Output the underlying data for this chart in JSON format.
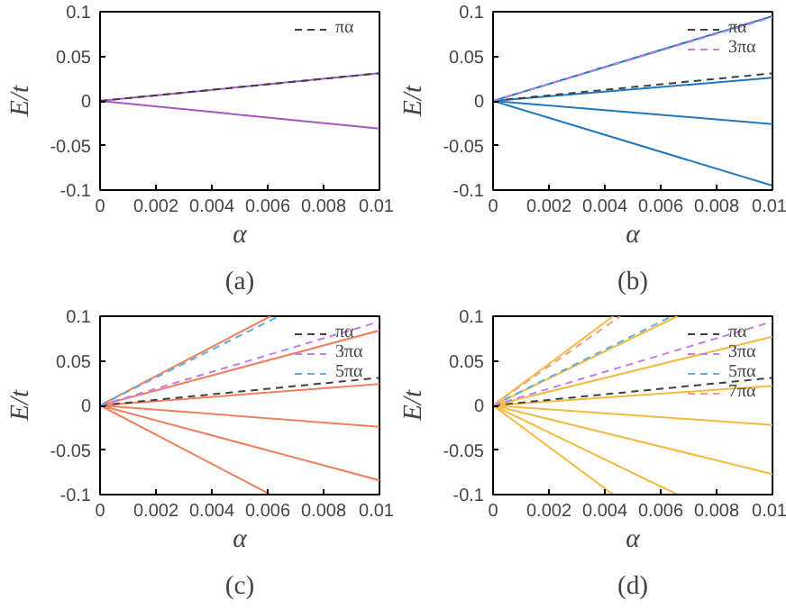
{
  "chart_data": [
    {
      "type": "line",
      "xlabel": "α",
      "ylabel": "E/t",
      "annotations": [
        "(a)"
      ],
      "xlim": [
        0,
        0.01
      ],
      "ylim": [
        -0.1,
        0.1
      ],
      "xticks": [
        0,
        0.002,
        0.004,
        0.006,
        0.008,
        0.01
      ],
      "yticks": [
        -0.1,
        -0.05,
        0,
        0.05,
        0.1
      ],
      "grid": false,
      "legend": "top right",
      "series": [
        {
          "color": "#a855c8",
          "x": [
            0,
            0.01
          ],
          "values": [
            0,
            0.031
          ]
        },
        {
          "color": "#a855c8",
          "x": [
            0,
            0.01
          ],
          "values": [
            0,
            -0.031
          ]
        },
        {
          "name": "πα",
          "color": "#404040",
          "line_style": "dashed",
          "x": [
            0,
            0.01
          ],
          "values": [
            0,
            0.031
          ]
        }
      ]
    },
    {
      "type": "line",
      "xlabel": "α",
      "ylabel": "E/t",
      "annotations": [
        "(b)"
      ],
      "xlim": [
        0,
        0.01
      ],
      "ylim": [
        -0.1,
        0.1
      ],
      "xticks": [
        0,
        0.002,
        0.004,
        0.006,
        0.008,
        0.01
      ],
      "yticks": [
        -0.1,
        -0.05,
        0,
        0.05,
        0.1
      ],
      "grid": false,
      "legend": "top right",
      "series": [
        {
          "color": "#1f78c1",
          "x": [
            0,
            0.01
          ],
          "values": [
            0,
            0.095
          ]
        },
        {
          "color": "#1f78c1",
          "x": [
            0,
            0.01
          ],
          "values": [
            0,
            0.026
          ]
        },
        {
          "color": "#1f78c1",
          "x": [
            0,
            0.01
          ],
          "values": [
            0,
            -0.026
          ]
        },
        {
          "color": "#1f78c1",
          "x": [
            0,
            0.01
          ],
          "values": [
            0,
            -0.095
          ]
        },
        {
          "name": "πα",
          "color": "#404040",
          "line_style": "dashed",
          "x": [
            0,
            0.01
          ],
          "values": [
            0,
            0.031
          ]
        },
        {
          "name": "3πα",
          "color": "#c080e0",
          "line_style": "dashed",
          "x": [
            0,
            0.01
          ],
          "values": [
            0,
            0.094
          ]
        }
      ]
    },
    {
      "type": "line",
      "xlabel": "α",
      "ylabel": "E/t",
      "annotations": [
        "(c)"
      ],
      "xlim": [
        0,
        0.01
      ],
      "ylim": [
        -0.1,
        0.1
      ],
      "xticks": [
        0,
        0.002,
        0.004,
        0.006,
        0.008,
        0.01
      ],
      "yticks": [
        -0.1,
        -0.05,
        0,
        0.05,
        0.1
      ],
      "grid": false,
      "legend": "top right",
      "series": [
        {
          "color": "#f08060",
          "x": [
            0,
            0.0061
          ],
          "values": [
            0,
            0.1
          ]
        },
        {
          "color": "#f08060",
          "x": [
            0,
            0.01
          ],
          "values": [
            0,
            0.084
          ]
        },
        {
          "color": "#f08060",
          "x": [
            0,
            0.01
          ],
          "values": [
            0,
            0.024
          ]
        },
        {
          "color": "#f08060",
          "x": [
            0,
            0.01
          ],
          "values": [
            0,
            -0.024
          ]
        },
        {
          "color": "#f08060",
          "x": [
            0,
            0.01
          ],
          "values": [
            0,
            -0.084
          ]
        },
        {
          "color": "#f08060",
          "x": [
            0,
            0.0061
          ],
          "values": [
            0,
            -0.1
          ]
        },
        {
          "name": "πα",
          "color": "#404040",
          "line_style": "dashed",
          "x": [
            0,
            0.01
          ],
          "values": [
            0,
            0.031
          ]
        },
        {
          "name": "3πα",
          "color": "#c080e0",
          "line_style": "dashed",
          "x": [
            0,
            0.01
          ],
          "values": [
            0,
            0.094
          ]
        },
        {
          "name": "5πα",
          "color": "#60b0e0",
          "line_style": "dashed",
          "x": [
            0,
            0.0064
          ],
          "values": [
            0,
            0.1
          ]
        }
      ]
    },
    {
      "type": "line",
      "xlabel": "α",
      "ylabel": "E/t",
      "annotations": [
        "(d)"
      ],
      "xlim": [
        0,
        0.01
      ],
      "ylim": [
        -0.1,
        0.1
      ],
      "xticks": [
        0,
        0.002,
        0.004,
        0.006,
        0.008,
        0.01
      ],
      "yticks": [
        -0.1,
        -0.05,
        0,
        0.05,
        0.1
      ],
      "grid": false,
      "legend": "top right",
      "series": [
        {
          "color": "#f5b942",
          "x": [
            0,
            0.0043
          ],
          "values": [
            0,
            0.1
          ]
        },
        {
          "color": "#f5b942",
          "x": [
            0,
            0.0066
          ],
          "values": [
            0,
            0.1
          ]
        },
        {
          "color": "#f5b942",
          "x": [
            0,
            0.01
          ],
          "values": [
            0,
            0.077
          ]
        },
        {
          "color": "#f5b942",
          "x": [
            0,
            0.01
          ],
          "values": [
            0,
            0.022
          ]
        },
        {
          "color": "#f5b942",
          "x": [
            0,
            0.01
          ],
          "values": [
            0,
            -0.022
          ]
        },
        {
          "color": "#f5b942",
          "x": [
            0,
            0.01
          ],
          "values": [
            0,
            -0.077
          ]
        },
        {
          "color": "#f5b942",
          "x": [
            0,
            0.0066
          ],
          "values": [
            0,
            -0.1
          ]
        },
        {
          "color": "#f5b942",
          "x": [
            0,
            0.0043
          ],
          "values": [
            0,
            -0.1
          ]
        },
        {
          "name": "πα",
          "color": "#404040",
          "line_style": "dashed",
          "x": [
            0,
            0.01
          ],
          "values": [
            0,
            0.031
          ]
        },
        {
          "name": "3πα",
          "color": "#c080e0",
          "line_style": "dashed",
          "x": [
            0,
            0.01
          ],
          "values": [
            0,
            0.094
          ]
        },
        {
          "name": "5πα",
          "color": "#60b0e0",
          "line_style": "dashed",
          "x": [
            0,
            0.0064
          ],
          "values": [
            0,
            0.1
          ]
        },
        {
          "name": "7πα",
          "color": "#f0a080",
          "line_style": "dashed",
          "x": [
            0,
            0.00455
          ],
          "values": [
            0,
            0.1
          ]
        }
      ]
    }
  ]
}
